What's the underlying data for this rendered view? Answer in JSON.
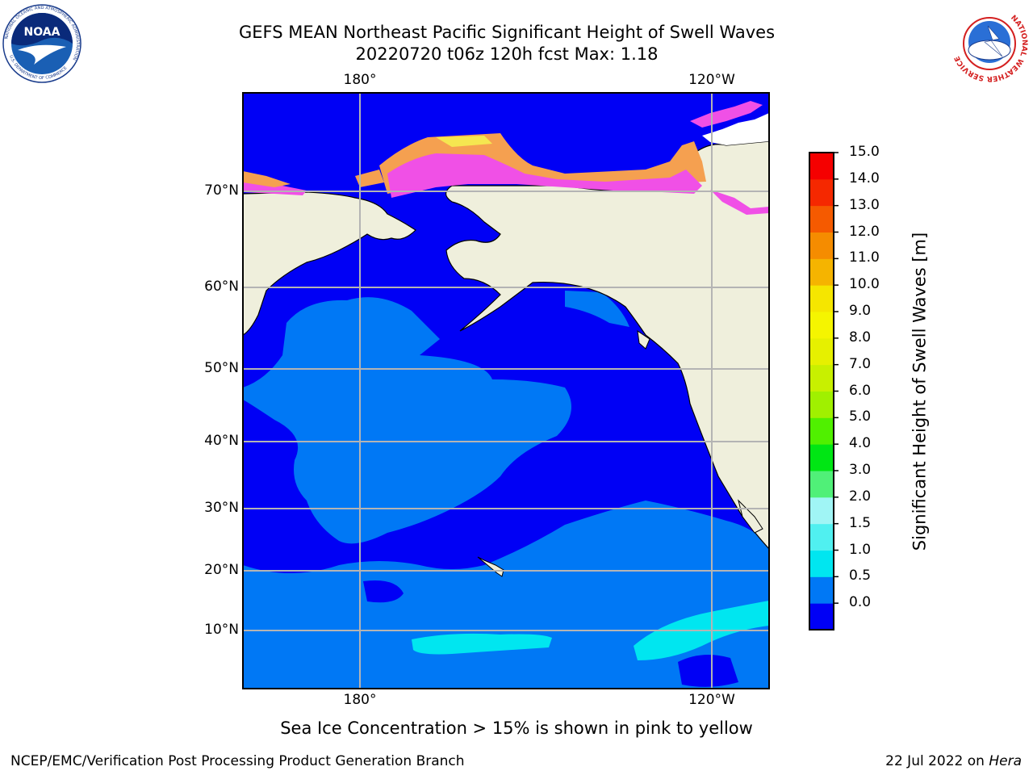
{
  "title": {
    "line1": "GEFS MEAN Northeast Pacific Significant Height of Swell Waves",
    "line2": "20220720 t06z 120h fcst   Max: 1.18"
  },
  "map": {
    "lat_labels": [
      "70°N",
      "60°N",
      "50°N",
      "40°N",
      "30°N",
      "20°N",
      "10°N"
    ],
    "lon_labels_top": [
      "180°",
      "120°W"
    ],
    "lon_labels_bottom": [
      "180°",
      "120°W"
    ],
    "colors": {
      "land": "#efefdc",
      "swell_0_0_5": "#0000f5",
      "swell_0_5_1_0": "#0078f5",
      "swell_1_0_1_5": "#00e6f0",
      "sea_ice_pink": "#f050e6",
      "sea_ice_orange": "#f5a050",
      "sea_ice_yellow": "#f5e650",
      "grid": "#b4b4b4"
    }
  },
  "colorbar": {
    "label": "Significant Height of Swell Waves [m]",
    "ticks": [
      "15.0",
      "14.0",
      "13.0",
      "12.0",
      "11.0",
      "10.0",
      "9.0",
      "8.0",
      "7.0",
      "6.0",
      "5.0",
      "4.0",
      "3.0",
      "2.0",
      "1.5",
      "1.0",
      "0.5",
      "0.0"
    ],
    "colors": [
      "#0000f5",
      "#0078f5",
      "#00e6f0",
      "#50f0f0",
      "#a0f5f5",
      "#50f078",
      "#00e614",
      "#50f000",
      "#a0f000",
      "#c8f000",
      "#e6f000",
      "#f5f500",
      "#f5e600",
      "#f5b400",
      "#f58c00",
      "#f55a00",
      "#f52800",
      "#f50000"
    ]
  },
  "sea_ice_note": "Sea Ice Concentration > 15% is shown in pink to yellow",
  "footer": {
    "left": "NCEP/EMC/Verification Post Processing Product Generation Branch",
    "right_date": "22 Jul 2022 on ",
    "right_host": "Hera"
  },
  "logos": {
    "noaa_text": "NOAA",
    "noaa_ring": "NATIONAL OCEANIC AND ATMOSPHERIC ADMINISTRATION",
    "noaa_ring_bottom": "U.S. DEPARTMENT OF COMMERCE",
    "nws_ring": "NATIONAL WEATHER SERVICE"
  }
}
